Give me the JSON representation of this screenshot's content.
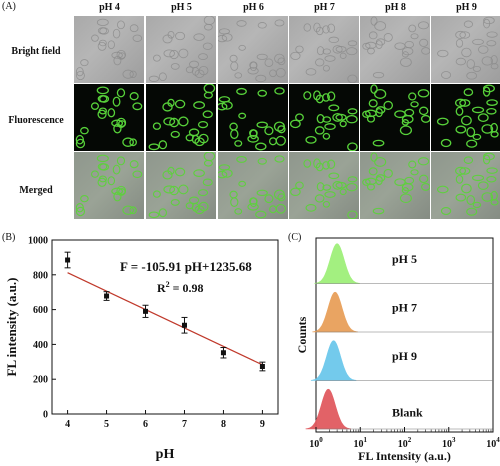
{
  "panel_labels": {
    "a": "(A)",
    "b": "(B)",
    "c": "(C)"
  },
  "microscopy": {
    "columns": [
      "pH 4",
      "pH 5",
      "pH 6",
      "pH 7",
      "pH 8",
      "pH 9"
    ],
    "rows": [
      "Bright field",
      "Fluorescence",
      "Merged"
    ],
    "colors": {
      "fluorescence": "#57d13a",
      "bright_field": "#a6a6a6",
      "merged": "#939b90"
    }
  },
  "chart_data": [
    {
      "type": "scatter",
      "x": [
        4,
        5,
        6,
        7,
        8,
        9
      ],
      "y": [
        885,
        678,
        590,
        510,
        352,
        273
      ],
      "error": [
        45,
        25,
        35,
        45,
        30,
        25
      ],
      "fit": {
        "slope": -105.91,
        "intercept": 1235.68,
        "color": "#c0392b"
      },
      "equation": "F = -105.91 pH+1235.68",
      "r2_label": "R",
      "r2_exp": "2",
      "r2_value": " = 0.98",
      "xlabel": "pH",
      "ylabel": "FL intensity (a.u.)",
      "xlim": [
        3.6,
        9.4
      ],
      "ylim": [
        0,
        1000
      ],
      "xticks": [
        4,
        5,
        6,
        7,
        8,
        9
      ],
      "yticks": [
        0,
        200,
        400,
        600,
        800,
        1000
      ]
    },
    {
      "type": "area",
      "xlabel": "FL Intensity (a.u.)",
      "ylabel": "Counts",
      "x_scale": "log",
      "xlim": [
        1,
        10000
      ],
      "xticks": [
        {
          "base": "10",
          "exp": "0"
        },
        {
          "base": "10",
          "exp": "1"
        },
        {
          "base": "10",
          "exp": "2"
        },
        {
          "base": "10",
          "exp": "3"
        },
        {
          "base": "10",
          "exp": "4"
        }
      ],
      "series": [
        {
          "name": "pH 5",
          "peak": 3.0,
          "color": "#9ff07a"
        },
        {
          "name": "pH 7",
          "peak": 2.7,
          "color": "#e8a05a"
        },
        {
          "name": "pH 9",
          "peak": 2.5,
          "color": "#6cc8ec"
        },
        {
          "name": "Blank",
          "peak": 1.9,
          "color": "#e15a5f"
        }
      ]
    }
  ]
}
